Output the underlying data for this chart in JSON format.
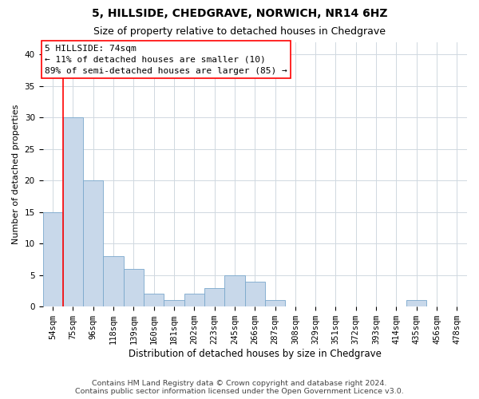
{
  "title": "5, HILLSIDE, CHEDGRAVE, NORWICH, NR14 6HZ",
  "subtitle": "Size of property relative to detached houses in Chedgrave",
  "xlabel": "Distribution of detached houses by size in Chedgrave",
  "ylabel": "Number of detached properties",
  "bar_color": "#c8d8ea",
  "bar_edge_color": "#7aa8cc",
  "bar_heights": [
    15,
    30,
    20,
    8,
    6,
    2,
    1,
    2,
    3,
    5,
    4,
    1,
    0,
    0,
    0,
    0,
    0,
    0,
    1,
    0,
    0
  ],
  "bar_labels": [
    "54sqm",
    "75sqm",
    "96sqm",
    "118sqm",
    "139sqm",
    "160sqm",
    "181sqm",
    "202sqm",
    "223sqm",
    "245sqm",
    "266sqm",
    "287sqm",
    "308sqm",
    "329sqm",
    "351sqm",
    "372sqm",
    "393sqm",
    "414sqm",
    "435sqm",
    "456sqm",
    "478sqm"
  ],
  "ylim": [
    0,
    42
  ],
  "yticks": [
    0,
    5,
    10,
    15,
    20,
    25,
    30,
    35,
    40
  ],
  "annotation_box_text": "5 HILLSIDE: 74sqm\n← 11% of detached houses are smaller (10)\n89% of semi-detached houses are larger (85) →",
  "red_line_bar_index": 1,
  "footer_line1": "Contains HM Land Registry data © Crown copyright and database right 2024.",
  "footer_line2": "Contains public sector information licensed under the Open Government Licence v3.0.",
  "background_color": "#ffffff",
  "grid_color": "#d0d8e0",
  "title_fontsize": 10,
  "subtitle_fontsize": 9,
  "xlabel_fontsize": 8.5,
  "ylabel_fontsize": 8,
  "tick_fontsize": 7.5,
  "annotation_fontsize": 8,
  "footer_fontsize": 6.8
}
